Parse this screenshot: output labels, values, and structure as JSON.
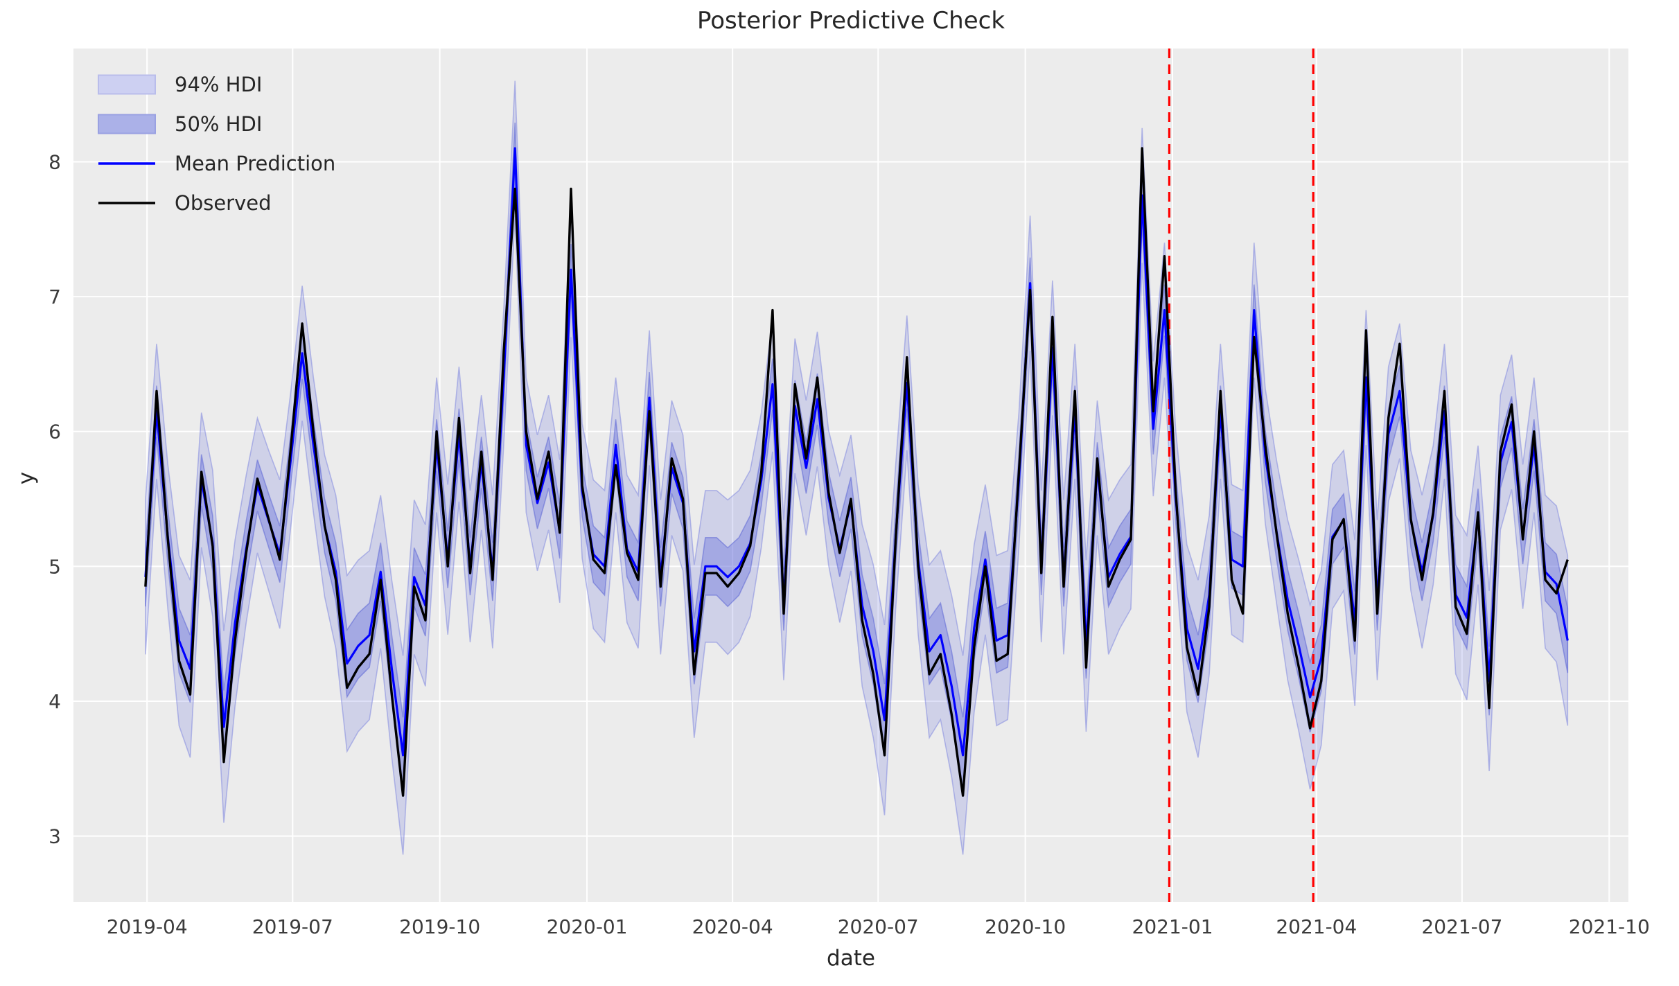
{
  "chart_data": {
    "type": "line",
    "title": "Posterior Predictive Check",
    "xlabel": "date",
    "ylabel": "y",
    "grid": true,
    "legend_position": "upper-left",
    "legend": {
      "items": [
        {
          "label": "94% HDI",
          "type": "patch",
          "fill": "#cdd0f2",
          "edge": "#b9bdeb"
        },
        {
          "label": "50% HDI",
          "type": "patch",
          "fill": "#abb1e8",
          "edge": "#9aa1e2"
        },
        {
          "label": "Mean Prediction",
          "type": "line",
          "color": "#0000ff"
        },
        {
          "label": "Observed",
          "type": "line",
          "color": "#000000"
        }
      ]
    },
    "colors": {
      "figure_bg": "#ffffff",
      "axes_bg": "#ececec",
      "grid": "#ffffff",
      "observed": "#000000",
      "mean": "#0000ff",
      "hdi94_fill": "rgba(105,115,220,0.22)",
      "hdi94_edge": "rgba(110,120,222,0.45)",
      "hdi50_fill": "rgba(105,115,220,0.42)",
      "hdi50_edge": "rgba(85,95,212,0.50)",
      "vline": "#ff0000",
      "text": "#262626",
      "tick_text": "#3c3c3c"
    },
    "xlim": [
      "2019-02-14",
      "2021-10-13"
    ],
    "ylim": [
      2.51,
      8.84
    ],
    "x_ticks": [
      [
        "2019-04-01",
        "2019-04"
      ],
      [
        "2019-07-01",
        "2019-07"
      ],
      [
        "2019-10-01",
        "2019-10"
      ],
      [
        "2020-01-01",
        "2020-01"
      ],
      [
        "2020-04-01",
        "2020-04"
      ],
      [
        "2020-07-01",
        "2020-07"
      ],
      [
        "2020-10-01",
        "2020-10"
      ],
      [
        "2021-01-01",
        "2021-01"
      ],
      [
        "2021-04-01",
        "2021-04"
      ],
      [
        "2021-07-01",
        "2021-07"
      ],
      [
        "2021-10-01",
        "2021-10"
      ]
    ],
    "y_ticks": [
      3,
      4,
      5,
      6,
      7,
      8
    ],
    "vlines": {
      "dates": [
        "2020-12-30",
        "2021-03-30"
      ],
      "color": "#ff0000",
      "style": "dashed",
      "meaning": "vertical dashed split markers"
    },
    "hdi": {
      "hdi94_halfwidth_base": 0.5,
      "hdi94_halfwidth_extra_at_low_mean": 0.25,
      "hdi50_fraction_of_94": 0.38,
      "note": "bands drawn as mean +/- halfwidth; wider where mean is low"
    },
    "dates": [
      "2019-03-31",
      "2019-04-07",
      "2019-04-14",
      "2019-04-21",
      "2019-04-28",
      "2019-05-05",
      "2019-05-12",
      "2019-05-19",
      "2019-05-26",
      "2019-06-02",
      "2019-06-09",
      "2019-06-16",
      "2019-06-23",
      "2019-06-30",
      "2019-07-07",
      "2019-07-14",
      "2019-07-21",
      "2019-07-28",
      "2019-08-04",
      "2019-08-11",
      "2019-08-18",
      "2019-08-25",
      "2019-09-01",
      "2019-09-08",
      "2019-09-15",
      "2019-09-22",
      "2019-09-29",
      "2019-10-06",
      "2019-10-13",
      "2019-10-20",
      "2019-10-27",
      "2019-11-03",
      "2019-11-10",
      "2019-11-17",
      "2019-11-24",
      "2019-12-01",
      "2019-12-08",
      "2019-12-15",
      "2019-12-22",
      "2019-12-29",
      "2020-01-05",
      "2020-01-12",
      "2020-01-19",
      "2020-01-26",
      "2020-02-02",
      "2020-02-09",
      "2020-02-16",
      "2020-02-23",
      "2020-03-01",
      "2020-03-08",
      "2020-03-15",
      "2020-03-22",
      "2020-03-29",
      "2020-04-05",
      "2020-04-12",
      "2020-04-19",
      "2020-04-26",
      "2020-05-03",
      "2020-05-10",
      "2020-05-17",
      "2020-05-24",
      "2020-05-31",
      "2020-06-07",
      "2020-06-14",
      "2020-06-21",
      "2020-06-28",
      "2020-07-05",
      "2020-07-12",
      "2020-07-19",
      "2020-07-26",
      "2020-08-02",
      "2020-08-09",
      "2020-08-16",
      "2020-08-23",
      "2020-08-30",
      "2020-09-06",
      "2020-09-13",
      "2020-09-20",
      "2020-09-27",
      "2020-10-04",
      "2020-10-11",
      "2020-10-18",
      "2020-10-25",
      "2020-11-01",
      "2020-11-08",
      "2020-11-15",
      "2020-11-22",
      "2020-11-29",
      "2020-12-06",
      "2020-12-13",
      "2020-12-20",
      "2020-12-27",
      "2021-01-03",
      "2021-01-10",
      "2021-01-17",
      "2021-01-24",
      "2021-01-31",
      "2021-02-07",
      "2021-02-14",
      "2021-02-21",
      "2021-02-28",
      "2021-03-07",
      "2021-03-14",
      "2021-03-21",
      "2021-03-28",
      "2021-04-04",
      "2021-04-11",
      "2021-04-18",
      "2021-04-25",
      "2021-05-02",
      "2021-05-09",
      "2021-05-16",
      "2021-05-23",
      "2021-05-30",
      "2021-06-06",
      "2021-06-13",
      "2021-06-20",
      "2021-06-27",
      "2021-07-04",
      "2021-07-11",
      "2021-07-18",
      "2021-07-25",
      "2021-08-01",
      "2021-08-08",
      "2021-08-15",
      "2021-08-22",
      "2021-08-29",
      "2021-09-05"
    ],
    "observed": [
      4.85,
      6.3,
      5.2,
      4.3,
      4.05,
      5.7,
      5.15,
      3.55,
      4.45,
      5.1,
      5.65,
      5.35,
      5.05,
      5.9,
      6.8,
      6.0,
      5.3,
      4.9,
      4.1,
      4.25,
      4.35,
      4.9,
      4.05,
      3.3,
      4.85,
      4.6,
      6.0,
      5.0,
      6.1,
      4.95,
      5.85,
      4.9,
      6.6,
      7.8,
      6.0,
      5.5,
      5.85,
      5.25,
      7.8,
      5.6,
      5.05,
      4.95,
      5.75,
      5.1,
      4.9,
      6.15,
      4.85,
      5.8,
      5.5,
      4.2,
      4.95,
      4.95,
      4.85,
      4.95,
      5.15,
      5.7,
      6.9,
      4.65,
      6.35,
      5.8,
      6.4,
      5.55,
      5.1,
      5.5,
      4.6,
      4.2,
      3.6,
      5.2,
      6.55,
      5.0,
      4.2,
      4.35,
      3.9,
      3.3,
      4.4,
      5.0,
      4.3,
      4.35,
      5.7,
      7.05,
      4.95,
      6.85,
      4.85,
      6.3,
      4.25,
      5.8,
      4.85,
      5.05,
      5.2,
      8.1,
      6.15,
      7.3,
      5.55,
      4.4,
      4.05,
      4.7,
      6.3,
      4.9,
      4.65,
      6.7,
      5.9,
      5.25,
      4.65,
      4.25,
      3.8,
      4.15,
      5.2,
      5.35,
      4.45,
      6.75,
      4.65,
      6.1,
      6.65,
      5.35,
      4.9,
      5.4,
      6.3,
      4.7,
      4.5,
      5.4,
      3.95,
      5.85,
      6.2,
      5.2,
      6.0,
      4.9,
      4.8,
      5.05
    ],
    "mean": [
      4.92,
      6.15,
      5.22,
      4.45,
      4.24,
      5.64,
      5.17,
      3.81,
      4.58,
      5.13,
      5.6,
      5.34,
      5.09,
      5.81,
      6.58,
      5.9,
      5.3,
      4.96,
      4.28,
      4.41,
      4.49,
      4.96,
      4.24,
      3.6,
      4.92,
      4.71,
      5.9,
      5.05,
      5.98,
      5.0,
      5.77,
      4.96,
      6.41,
      8.1,
      5.9,
      5.47,
      5.77,
      5.26,
      7.2,
      5.56,
      5.09,
      5.0,
      5.9,
      5.13,
      4.96,
      6.25,
      4.92,
      5.73,
      5.47,
      4.37,
      5.0,
      5.0,
      4.92,
      5.0,
      5.17,
      5.64,
      6.35,
      4.75,
      6.19,
      5.73,
      6.24,
      5.51,
      5.13,
      5.47,
      4.71,
      4.37,
      3.86,
      5.22,
      6.36,
      5.05,
      4.37,
      4.49,
      4.11,
      3.6,
      4.54,
      5.05,
      4.45,
      4.49,
      5.64,
      7.1,
      5.0,
      6.62,
      4.92,
      6.15,
      4.41,
      5.73,
      4.92,
      5.09,
      5.22,
      7.75,
      6.02,
      6.9,
      5.51,
      4.54,
      4.24,
      4.79,
      6.15,
      5.05,
      5.0,
      6.9,
      5.82,
      5.26,
      4.75,
      4.41,
      4.03,
      4.32,
      5.22,
      5.34,
      4.58,
      6.4,
      4.75,
      5.98,
      6.3,
      5.34,
      4.96,
      5.38,
      6.15,
      4.79,
      4.62,
      5.38,
      4.15,
      5.77,
      6.07,
      5.22,
      5.9,
      4.96,
      4.87,
      4.45
    ]
  }
}
